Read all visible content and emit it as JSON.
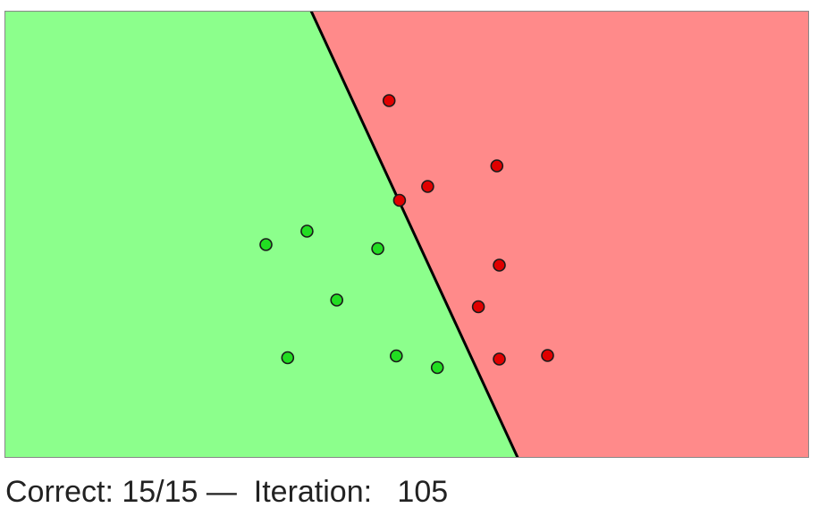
{
  "colors": {
    "region_green": "#8cff8c",
    "region_red": "#ff8a8a",
    "point_green": "#22dd22",
    "point_red": "#e00000",
    "boundary": "#000000",
    "plot_border": "#888888"
  },
  "boundary": {
    "top_x_fraction": 0.381,
    "bottom_x_fraction": 0.638
  },
  "points": [
    {
      "class": "red",
      "x": 0.478,
      "y": 0.201
    },
    {
      "class": "red",
      "x": 0.612,
      "y": 0.347
    },
    {
      "class": "red",
      "x": 0.526,
      "y": 0.393
    },
    {
      "class": "red",
      "x": 0.491,
      "y": 0.424
    },
    {
      "class": "red",
      "x": 0.615,
      "y": 0.569
    },
    {
      "class": "red",
      "x": 0.589,
      "y": 0.662
    },
    {
      "class": "red",
      "x": 0.615,
      "y": 0.779
    },
    {
      "class": "red",
      "x": 0.675,
      "y": 0.771
    },
    {
      "class": "green",
      "x": 0.376,
      "y": 0.493
    },
    {
      "class": "green",
      "x": 0.325,
      "y": 0.523
    },
    {
      "class": "green",
      "x": 0.464,
      "y": 0.532
    },
    {
      "class": "green",
      "x": 0.413,
      "y": 0.647
    },
    {
      "class": "green",
      "x": 0.352,
      "y": 0.776
    },
    {
      "class": "green",
      "x": 0.487,
      "y": 0.772
    },
    {
      "class": "green",
      "x": 0.538,
      "y": 0.798
    }
  ],
  "status": {
    "text": "Correct: 15/15 —  Iteration:   105"
  }
}
